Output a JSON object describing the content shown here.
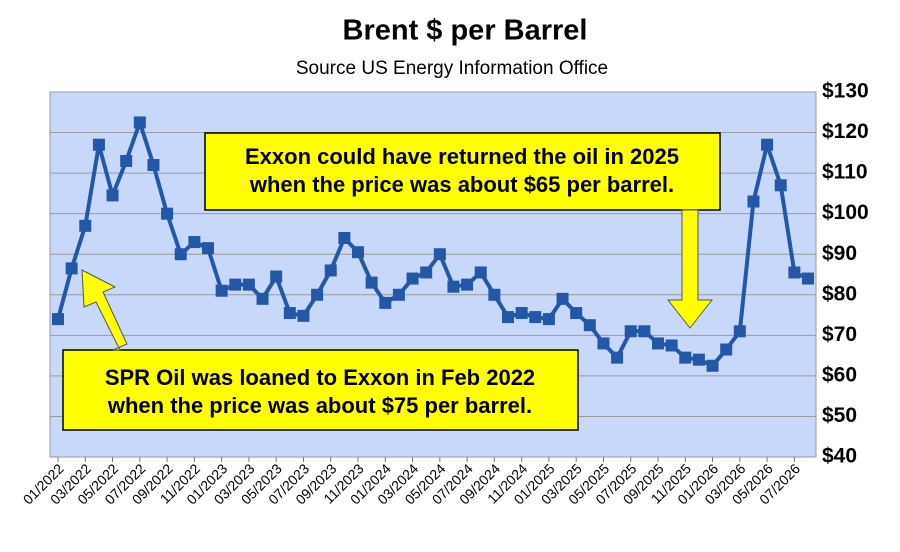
{
  "chart_data": {
    "type": "line",
    "title": "Brent $ per Barrel",
    "subtitle": "Source US Energy Information Office",
    "categories": [
      "01/2022",
      null,
      "03/2022",
      null,
      "05/2022",
      null,
      "07/2022",
      null,
      "09/2022",
      null,
      "11/2022",
      null,
      "01/2023",
      null,
      "03/2023",
      null,
      "05/2023",
      null,
      "07/2023",
      null,
      "09/2023",
      null,
      "11/2023",
      null,
      "01/2024",
      null,
      "03/2024",
      null,
      "05/2024",
      null,
      "07/2024",
      null,
      "09/2024",
      null,
      "11/2024",
      null,
      "01/2025",
      null,
      "03/2025",
      null,
      "05/2025",
      null,
      "07/2025",
      null,
      "09/2025",
      null,
      "11/2025",
      null,
      "01/2026",
      null,
      "03/2026",
      null,
      "05/2026",
      null,
      "07/2026",
      null
    ],
    "series": [
      {
        "name": "Brent",
        "color": "#2457a6",
        "values": [
          74,
          86.5,
          97,
          117,
          104.5,
          113,
          122.5,
          112,
          100,
          90,
          93,
          91.5,
          81,
          82.5,
          82.5,
          79,
          84.5,
          75.5,
          74.8,
          80,
          86,
          94,
          90.5,
          83,
          78,
          80,
          84,
          85.5,
          90,
          82,
          82.5,
          85.5,
          80,
          74.5,
          75.5,
          74.5,
          74,
          79,
          75.5,
          72.5,
          68,
          64.5,
          71,
          71,
          68,
          67.5,
          64.5,
          64,
          62.5,
          66.5,
          71,
          103,
          117,
          107,
          85.5,
          84
        ]
      }
    ],
    "ylim": [
      40,
      130
    ],
    "yticks": [
      {
        "value": 40,
        "label": "$40"
      },
      {
        "value": 50,
        "label": "$50"
      },
      {
        "value": 60,
        "label": "$60"
      },
      {
        "value": 70,
        "label": "$70"
      },
      {
        "value": 80,
        "label": "$80"
      },
      {
        "value": 90,
        "label": "$90"
      },
      {
        "value": 100,
        "label": "$100"
      },
      {
        "value": 110,
        "label": "$110"
      },
      {
        "value": 120,
        "label": "$120"
      },
      {
        "value": 130,
        "label": "$130"
      }
    ],
    "grid": true,
    "annotations": [
      {
        "lines": [
          "Exxon could have returned the oil in 2025",
          "when the price was about $65 per barrel."
        ]
      },
      {
        "lines": [
          "SPR Oil was loaned to Exxon in Feb 2022",
          "when the price was about $75 per barrel."
        ]
      }
    ]
  }
}
